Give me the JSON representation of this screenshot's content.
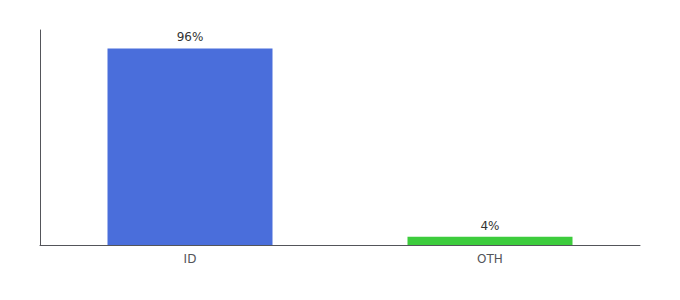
{
  "chart_data": {
    "type": "bar",
    "categories": [
      "ID",
      "OTH"
    ],
    "values": [
      96,
      4
    ],
    "colors": [
      "#4a6edb",
      "#3dcc3d"
    ],
    "value_labels": [
      "96%",
      "4%"
    ],
    "data_labels": true,
    "ylim": [
      0,
      105
    ],
    "yticks": [],
    "tick_labels": "x",
    "grid": false
  }
}
